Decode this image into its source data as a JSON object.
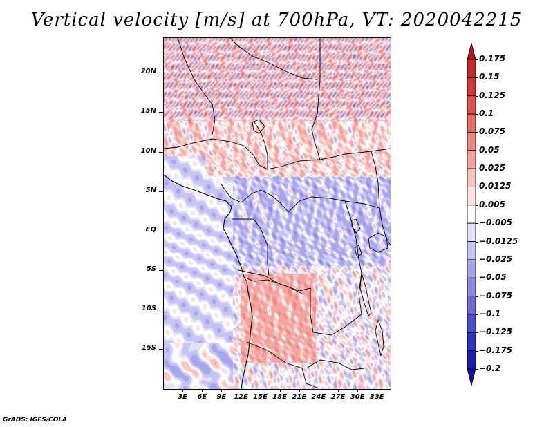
{
  "title": "Vertical velocity [m/s] at 700hPa, VT: 2020042215",
  "credit": "GrADS: IGES/COLA",
  "map": {
    "variable": "Vertical velocity",
    "units": "m/s",
    "level": "700hPa",
    "valid_time": "2020042215",
    "lon_range": [
      0,
      35
    ],
    "lat_range": [
      -20,
      24.5
    ],
    "lat_ticks": [
      {
        "value": 20,
        "label": "20N"
      },
      {
        "value": 15,
        "label": "15N"
      },
      {
        "value": 10,
        "label": "10N"
      },
      {
        "value": 5,
        "label": "5N"
      },
      {
        "value": 0,
        "label": "EQ"
      },
      {
        "value": -5,
        "label": "5S"
      },
      {
        "value": -10,
        "label": "10S"
      },
      {
        "value": -15,
        "label": "15S"
      }
    ],
    "lon_ticks": [
      {
        "value": 3,
        "label": "3E"
      },
      {
        "value": 6,
        "label": "6E"
      },
      {
        "value": 9,
        "label": "9E"
      },
      {
        "value": 12,
        "label": "12E"
      },
      {
        "value": 15,
        "label": "15E"
      },
      {
        "value": 18,
        "label": "18E"
      },
      {
        "value": 21,
        "label": "21E"
      },
      {
        "value": 24,
        "label": "24E"
      },
      {
        "value": 27,
        "label": "27E"
      },
      {
        "value": 30,
        "label": "30E"
      },
      {
        "value": 33,
        "label": "33E"
      }
    ]
  },
  "colorbar": {
    "levels": [
      "0.175",
      "0.15",
      "0.125",
      "0.1",
      "0.075",
      "0.05",
      "0.025",
      "0.0125",
      "0.005",
      "−0.005",
      "−0.0125",
      "−0.025",
      "−0.05",
      "−0.075",
      "−0.1",
      "−0.125",
      "−0.175",
      "−0.2"
    ],
    "colors": [
      "#b01a1e",
      "#c2282a",
      "#d2383a",
      "#dd5250",
      "#e66c68",
      "#ee8884",
      "#f4a4a0",
      "#f8c4c0",
      "#fce4e2",
      "#ffffff",
      "#e4e2fa",
      "#c6c4f2",
      "#a8a6ea",
      "#8a88e0",
      "#6c6ad6",
      "#4e4cca",
      "#3431bc",
      "#211eac",
      "#14129c"
    ]
  }
}
